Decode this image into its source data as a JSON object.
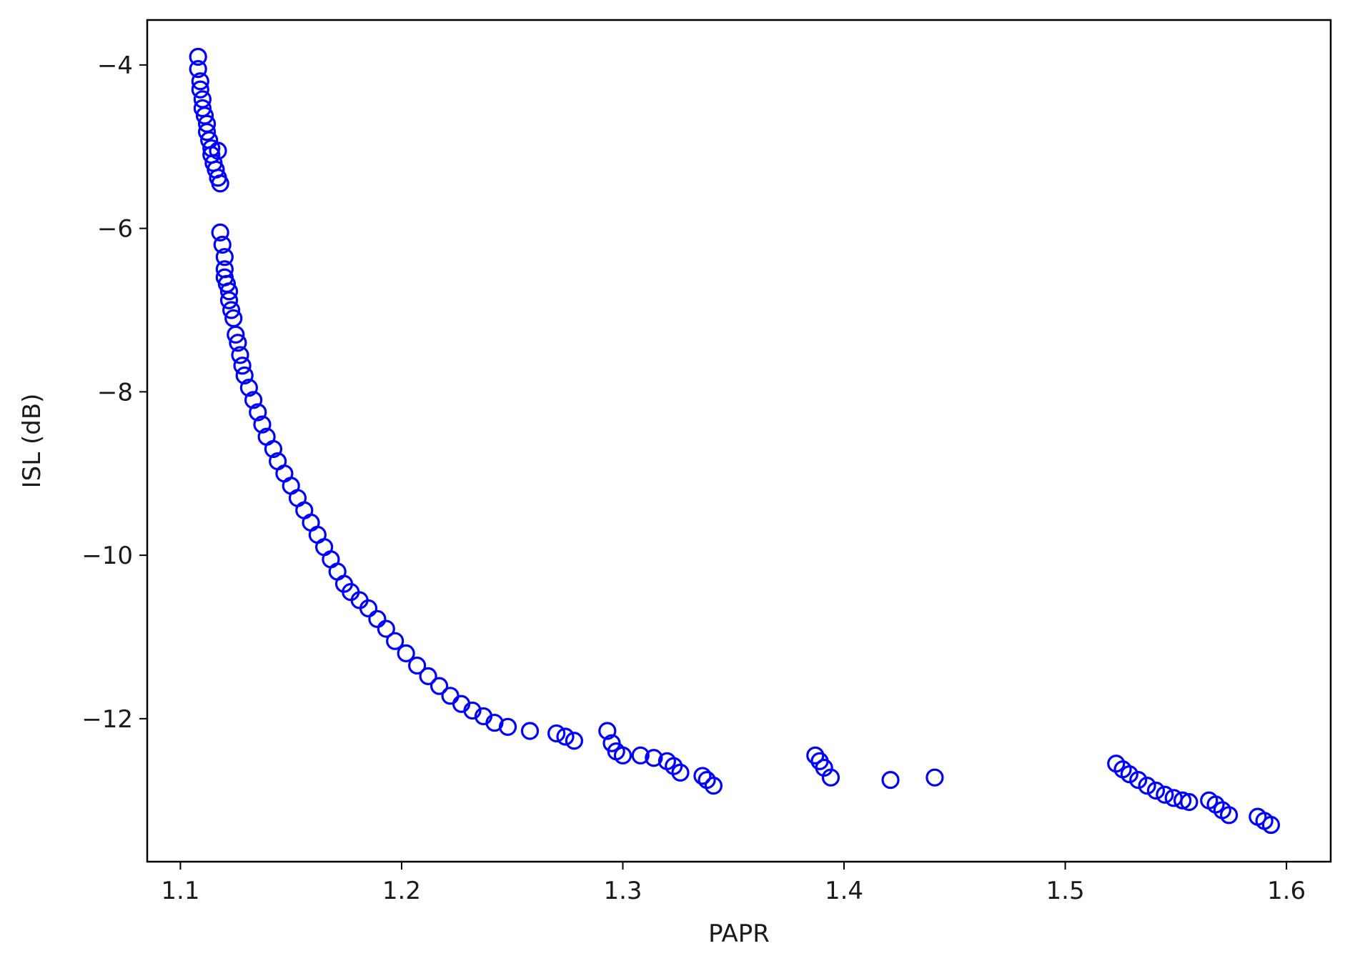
{
  "chart_data": {
    "type": "scatter",
    "title": "",
    "xlabel": "PAPR",
    "ylabel": "ISL (dB)",
    "xlim": [
      1.085,
      1.62
    ],
    "ylim": [
      -13.75,
      -3.45
    ],
    "xticks": [
      1.1,
      1.2,
      1.3,
      1.4,
      1.5,
      1.6
    ],
    "xtick_labels": [
      "1.1",
      "1.2",
      "1.3",
      "1.4",
      "1.5",
      "1.6"
    ],
    "yticks": [
      -4,
      -6,
      -8,
      -10,
      -12
    ],
    "ytick_labels": [
      "−4",
      "−6",
      "−8",
      "−10",
      "−12"
    ],
    "grid": false,
    "legend": "none",
    "marker": "open-circle",
    "marker_color": "#0000ff",
    "series": [
      {
        "x": [
          1.108,
          1.108,
          1.109,
          1.109,
          1.11,
          1.11,
          1.111,
          1.112,
          1.112,
          1.113,
          1.114,
          1.114,
          1.115,
          1.116,
          1.117,
          1.118,
          1.117,
          1.118,
          1.119,
          1.12,
          1.12,
          1.12,
          1.121,
          1.122,
          1.122,
          1.123,
          1.124,
          1.125,
          1.126,
          1.127,
          1.128,
          1.129,
          1.131,
          1.133,
          1.135,
          1.137,
          1.139,
          1.142,
          1.144,
          1.147,
          1.15,
          1.153,
          1.156,
          1.159,
          1.162,
          1.165,
          1.168,
          1.171,
          1.174,
          1.177,
          1.181,
          1.185,
          1.189,
          1.193,
          1.197,
          1.202,
          1.207,
          1.212,
          1.217,
          1.222,
          1.227,
          1.232,
          1.237,
          1.242,
          1.248,
          1.258,
          1.27,
          1.274,
          1.278,
          1.293,
          1.295,
          1.297,
          1.3,
          1.308,
          1.314,
          1.32,
          1.323,
          1.326,
          1.336,
          1.338,
          1.341,
          1.387,
          1.389,
          1.391,
          1.394,
          1.421,
          1.441,
          1.523,
          1.526,
          1.529,
          1.533,
          1.537,
          1.541,
          1.545,
          1.549,
          1.553,
          1.556,
          1.565,
          1.568,
          1.571,
          1.574,
          1.587,
          1.59,
          1.593
        ],
        "y": [
          -3.9,
          -4.05,
          -4.2,
          -4.3,
          -4.42,
          -4.53,
          -4.62,
          -4.72,
          -4.82,
          -4.92,
          -5.02,
          -5.1,
          -5.2,
          -5.28,
          -5.38,
          -5.45,
          -5.05,
          -6.05,
          -6.2,
          -6.35,
          -6.5,
          -6.6,
          -6.68,
          -6.77,
          -6.88,
          -7.0,
          -7.1,
          -7.3,
          -7.4,
          -7.55,
          -7.68,
          -7.8,
          -7.95,
          -8.1,
          -8.25,
          -8.4,
          -8.55,
          -8.7,
          -8.85,
          -9.0,
          -9.15,
          -9.3,
          -9.45,
          -9.6,
          -9.75,
          -9.9,
          -10.05,
          -10.2,
          -10.35,
          -10.45,
          -10.55,
          -10.65,
          -10.78,
          -10.9,
          -11.05,
          -11.2,
          -11.35,
          -11.48,
          -11.6,
          -11.72,
          -11.82,
          -11.9,
          -11.97,
          -12.05,
          -12.1,
          -12.15,
          -12.18,
          -12.22,
          -12.27,
          -12.15,
          -12.3,
          -12.4,
          -12.45,
          -12.45,
          -12.48,
          -12.52,
          -12.58,
          -12.66,
          -12.7,
          -12.75,
          -12.82,
          -12.45,
          -12.52,
          -12.6,
          -12.72,
          -12.75,
          -12.72,
          -12.55,
          -12.62,
          -12.68,
          -12.75,
          -12.82,
          -12.88,
          -12.93,
          -12.97,
          -13.0,
          -13.02,
          -13.0,
          -13.05,
          -13.12,
          -13.18,
          -13.2,
          -13.25,
          -13.3
        ]
      }
    ]
  }
}
